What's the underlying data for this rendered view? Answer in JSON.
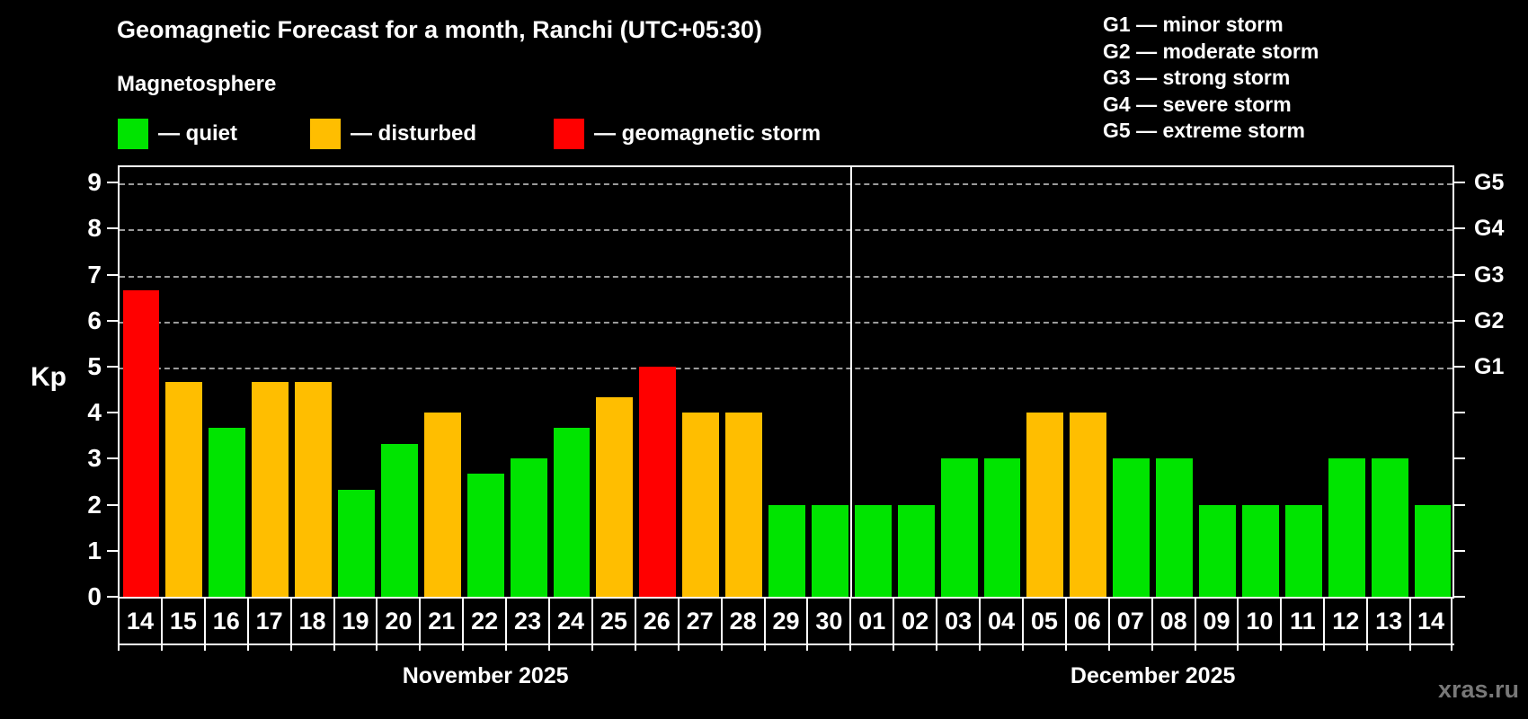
{
  "title": "Geomagnetic Forecast for a month, Ranchi (UTC+05:30)",
  "subtitle": "Magnetosphere",
  "legend": [
    {
      "key": "quiet",
      "label": "— quiet",
      "color": "#00E400"
    },
    {
      "key": "disturbed",
      "label": "— disturbed",
      "color": "#FFBE00"
    },
    {
      "key": "storm",
      "label": "— geomagnetic storm",
      "color": "#FF0000"
    }
  ],
  "g_legend": [
    "G1 — minor storm",
    "G2 — moderate storm",
    "G3 — strong storm",
    "G4 — severe storm",
    "G5 — extreme storm"
  ],
  "watermark": "xras.ru",
  "chart_data": {
    "type": "bar",
    "title": "Geomagnetic Forecast for a month, Ranchi (UTC+05:30)",
    "ylabel": "Kp",
    "ylim": [
      0,
      9.4
    ],
    "y_ticks": [
      0,
      1,
      2,
      3,
      4,
      5,
      6,
      7,
      8,
      9
    ],
    "gridlines_at_kp": [
      5,
      6,
      7,
      8,
      9
    ],
    "right_axis_labels": [
      {
        "kp": 5,
        "label": "G1"
      },
      {
        "kp": 6,
        "label": "G2"
      },
      {
        "kp": 7,
        "label": "G3"
      },
      {
        "kp": 8,
        "label": "G4"
      },
      {
        "kp": 9,
        "label": "G5"
      }
    ],
    "grid": "dashed, horizontal, Kp 5-9 only",
    "legend_position": "top-left and top-right",
    "colors": {
      "quiet": "#00E400",
      "disturbed": "#FFBE00",
      "storm": "#FF0000"
    },
    "months": [
      {
        "name": "November 2025",
        "days": [
          "14",
          "15",
          "16",
          "17",
          "18",
          "19",
          "20",
          "21",
          "22",
          "23",
          "24",
          "25",
          "26",
          "27",
          "28",
          "29",
          "30"
        ],
        "kp": [
          6.67,
          4.67,
          3.67,
          4.67,
          4.67,
          2.33,
          3.33,
          4.0,
          2.67,
          3.0,
          3.67,
          4.33,
          5.0,
          4.0,
          4.0,
          2.0,
          2.0
        ],
        "status": [
          "storm",
          "disturbed",
          "quiet",
          "disturbed",
          "disturbed",
          "quiet",
          "quiet",
          "disturbed",
          "quiet",
          "quiet",
          "quiet",
          "disturbed",
          "storm",
          "disturbed",
          "disturbed",
          "quiet",
          "quiet"
        ]
      },
      {
        "name": "December 2025",
        "days": [
          "01",
          "02",
          "03",
          "04",
          "05",
          "06",
          "07",
          "08",
          "09",
          "10",
          "11",
          "12",
          "13",
          "14"
        ],
        "kp": [
          2.0,
          2.0,
          3.0,
          3.0,
          4.0,
          4.0,
          3.0,
          3.0,
          2.0,
          2.0,
          2.0,
          3.0,
          3.0,
          2.0
        ],
        "status": [
          "quiet",
          "quiet",
          "quiet",
          "quiet",
          "disturbed",
          "disturbed",
          "quiet",
          "quiet",
          "quiet",
          "quiet",
          "quiet",
          "quiet",
          "quiet",
          "quiet"
        ]
      }
    ]
  }
}
